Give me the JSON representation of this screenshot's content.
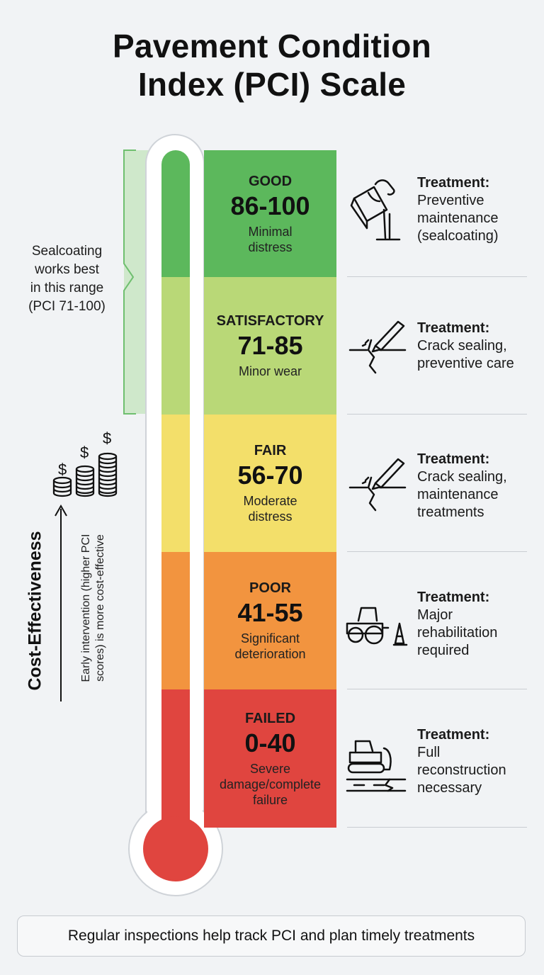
{
  "title": {
    "line1": "Pavement Condition",
    "line2": "Index (PCI) Scale"
  },
  "bands": [
    {
      "category": "GOOD",
      "range": "86-100",
      "description": "Minimal\ndistress",
      "color": "#5cb85c",
      "treatment_label": "Treatment:",
      "treatment": "Preventive\nmaintenance\n(sealcoating)",
      "icon": "paint-bucket-pour-icon"
    },
    {
      "category": "SATISFACTORY",
      "range": "71-85",
      "description": "Minor wear",
      "color": "#b9d877",
      "treatment_label": "Treatment:",
      "treatment": "Crack sealing,\npreventive care",
      "icon": "crack-sealing-icon"
    },
    {
      "category": "FAIR",
      "range": "56-70",
      "description": "Moderate\ndistress",
      "color": "#f3df6a",
      "treatment_label": "Treatment:",
      "treatment": "Crack sealing,\nmaintenance\ntreatments",
      "icon": "crack-sealing-icon"
    },
    {
      "category": "POOR",
      "range": "41-55",
      "description": "Significant\ndeterioration",
      "color": "#f2943f",
      "treatment_label": "Treatment:",
      "treatment": "Major\nrehabilitation\nrequired",
      "icon": "road-roller-cone-icon"
    },
    {
      "category": "FAILED",
      "range": "0-40",
      "description": "Severe\ndamage/complete\nfailure",
      "color": "#e0453f",
      "treatment_label": "Treatment:",
      "treatment": "Full\nreconstruction\nnecessary",
      "icon": "bulldozer-broken-road-icon"
    }
  ],
  "sealcoat_note": "Sealcoating\nworks best\nin this range\n(PCI 71-100)",
  "cost": {
    "title": "Cost-Effectiveness",
    "subtitle": "Early intervention (higher PCI\nscores) is more cost-effective",
    "icon": "coin-stacks-dollar-icon"
  },
  "footer": "Regular inspections help track PCI and plan timely treatments"
}
